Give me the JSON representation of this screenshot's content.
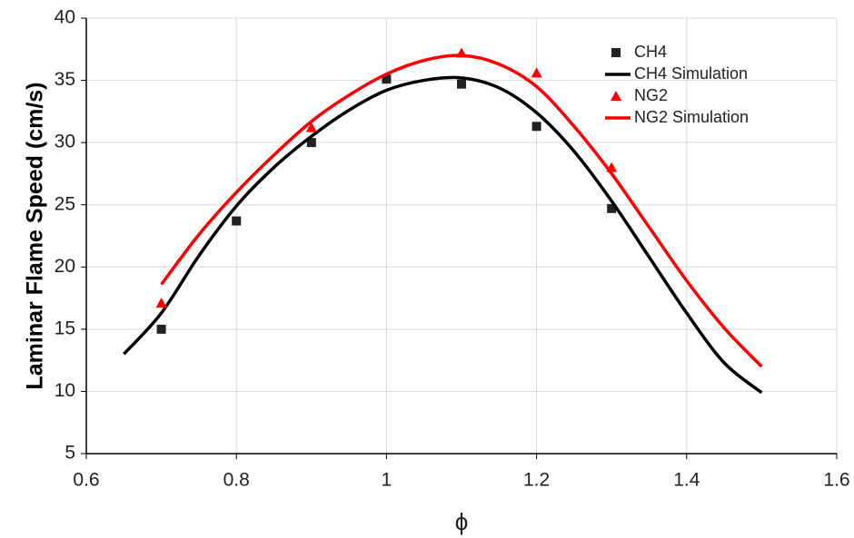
{
  "chart_data": {
    "type": "scatter",
    "x_label": "ϕ",
    "y_label": "Laminar Flame Speed (cm/s)",
    "xlim": [
      0.6,
      1.6
    ],
    "xticks": [
      0.6,
      0.8,
      1,
      1.2,
      1.4,
      1.6
    ],
    "ylim": [
      5,
      40
    ],
    "yticks": [
      5,
      10,
      15,
      20,
      25,
      30,
      35,
      40
    ],
    "grid": true,
    "legend": "upper right",
    "series": [
      {
        "name": "CH4",
        "color": "#222222",
        "mode": "markers",
        "marker": "square",
        "x": [
          0.7,
          0.8,
          0.9,
          1.0,
          1.1,
          1.2,
          1.3
        ],
        "values": [
          15,
          23.7,
          30,
          35.1,
          34.7,
          31.3,
          24.7
        ]
      },
      {
        "name": "CH4 Simulation",
        "color": "#000000",
        "mode": "line",
        "x": [
          0.65,
          0.7,
          0.75,
          0.8,
          0.85,
          0.9,
          0.95,
          1.0,
          1.05,
          1.1,
          1.15,
          1.2,
          1.25,
          1.3,
          1.35,
          1.4,
          1.45,
          1.5
        ],
        "values": [
          13,
          16.3,
          20.9,
          24.9,
          28,
          30.5,
          32.6,
          34.2,
          35,
          35.2,
          34.4,
          32.4,
          29.3,
          25.3,
          20.8,
          16.3,
          12.3,
          9.9
        ]
      },
      {
        "name": "NG2",
        "color": "#ff0000",
        "mode": "markers",
        "marker": "triangle",
        "x": [
          0.7,
          0.9,
          1.1,
          1.2,
          1.3
        ],
        "values": [
          17.1,
          31.2,
          37.2,
          35.6,
          28
        ]
      },
      {
        "name": "NG2 Simulation",
        "color": "#ff0000",
        "mode": "line",
        "x": [
          0.7,
          0.75,
          0.8,
          0.85,
          0.9,
          0.95,
          1.0,
          1.05,
          1.1,
          1.15,
          1.2,
          1.25,
          1.3,
          1.35,
          1.4,
          1.45,
          1.5
        ],
        "values": [
          18.6,
          22.6,
          26,
          29,
          31.7,
          33.8,
          35.5,
          36.6,
          37,
          36.3,
          34.5,
          31.3,
          27.5,
          23.2,
          18.9,
          15.1,
          12
        ]
      }
    ]
  }
}
